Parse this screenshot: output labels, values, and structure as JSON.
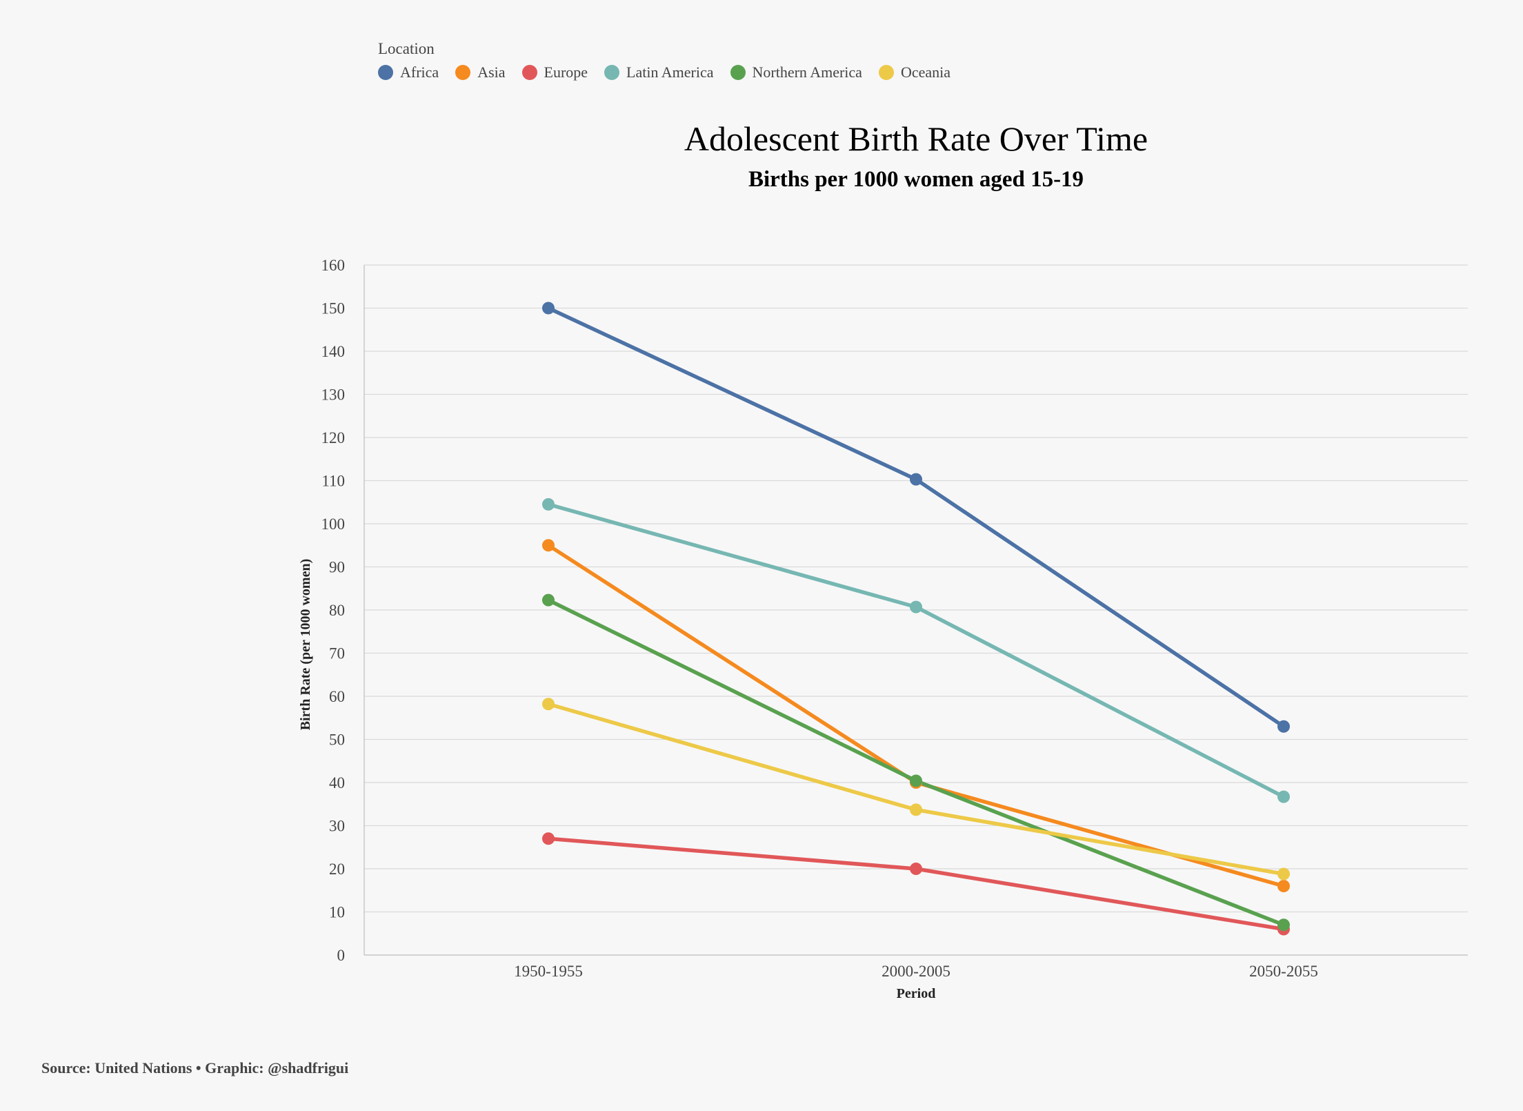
{
  "legend": {
    "title": "Location"
  },
  "source": "Source: United Nations • Graphic: @shadfrigui",
  "chart_data": {
    "type": "line",
    "title": "Adolescent Birth Rate Over Time",
    "subtitle": "Births per 1000 women aged 15-19",
    "xlabel": "Period",
    "ylabel": "Birth Rate (per 1000 women)",
    "categories": [
      "1950-1955",
      "2000-2005",
      "2050-2055"
    ],
    "ylim": [
      0,
      160
    ],
    "yticks": [
      "0",
      "10",
      "20",
      "30",
      "40",
      "50",
      "60",
      "70",
      "80",
      "90",
      "100",
      "110",
      "120",
      "130",
      "140",
      "150",
      "160"
    ],
    "grid": true,
    "legend_position": "top-left",
    "series": [
      {
        "name": "Africa",
        "color": "#4c72a6",
        "values": [
          150.0,
          110.3,
          53.0
        ]
      },
      {
        "name": "Asia",
        "color": "#f58a1f",
        "values": [
          95.0,
          40.0,
          16.0
        ]
      },
      {
        "name": "Europe",
        "color": "#e15759",
        "values": [
          27.0,
          20.0,
          6.0
        ]
      },
      {
        "name": "Latin America",
        "color": "#76b7b2",
        "values": [
          104.5,
          80.7,
          36.7
        ]
      },
      {
        "name": "Northern America",
        "color": "#59a14f",
        "values": [
          82.3,
          40.4,
          7.0
        ]
      },
      {
        "name": "Oceania",
        "color": "#edc948",
        "values": [
          58.2,
          33.7,
          18.8
        ]
      }
    ]
  }
}
